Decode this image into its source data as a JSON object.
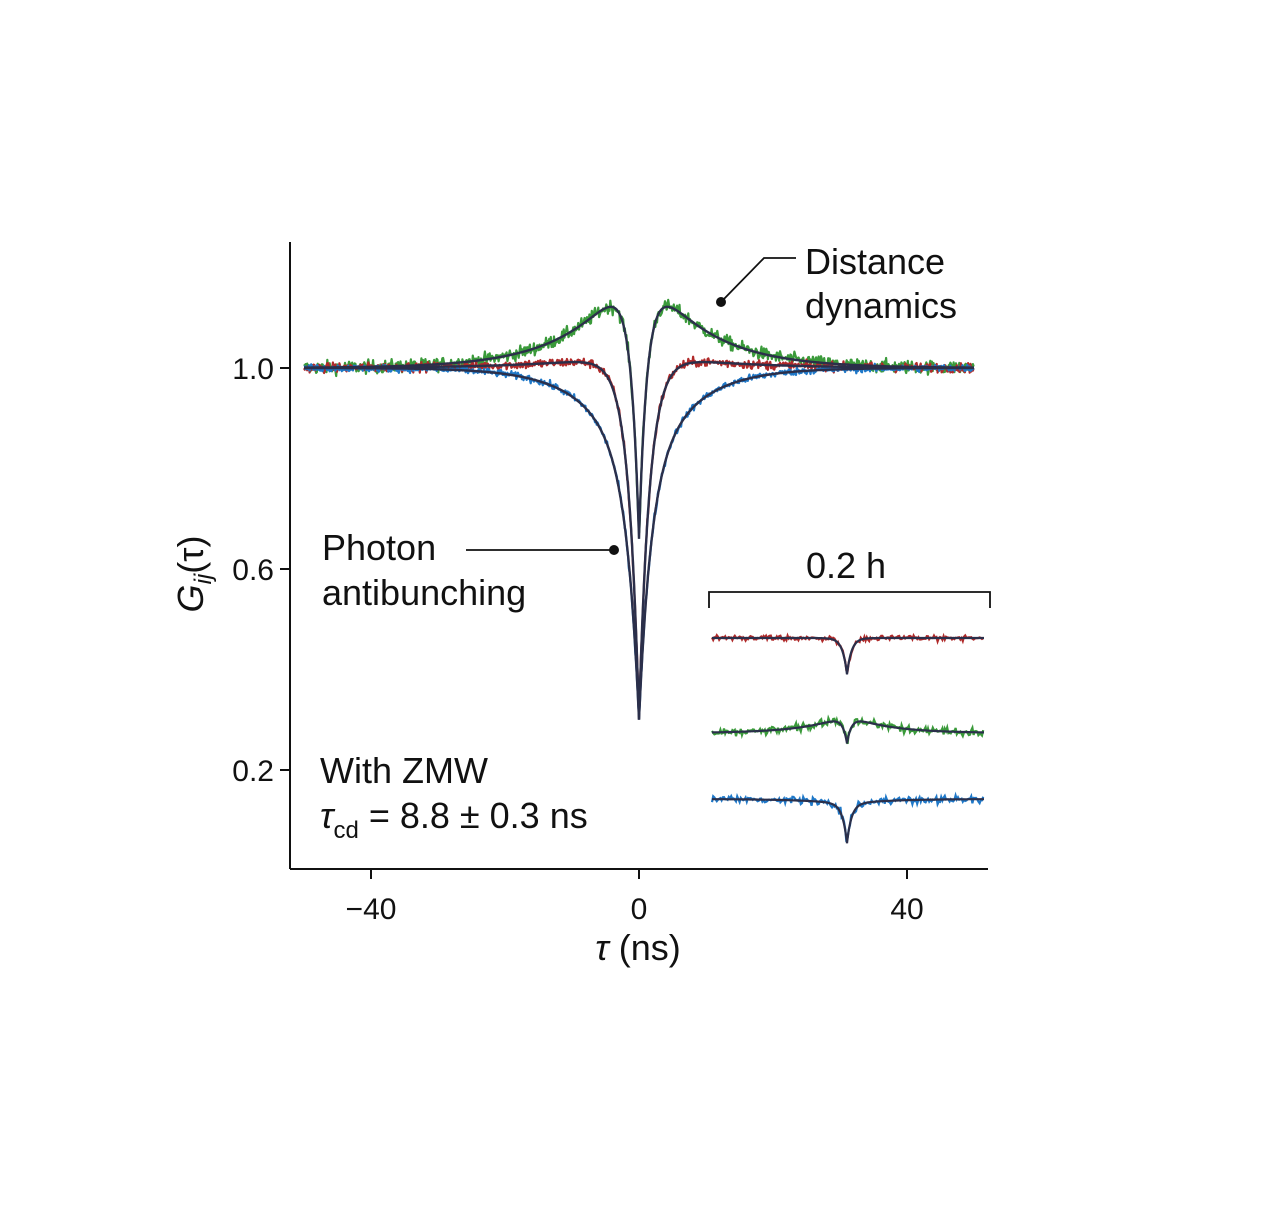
{
  "chart_data": {
    "type": "line",
    "title": "",
    "xlabel_sym": "τ",
    "xlabel_rest": " (ns)",
    "ylabel_main": "G",
    "ylabel_sub": "ij",
    "ylabel_arg": "(τ)",
    "xlim": [
      -50,
      52
    ],
    "ylim": [
      0.0,
      1.25
    ],
    "xticks": [
      -40,
      0,
      40
    ],
    "xtick_labels": [
      "−40",
      "0",
      "40"
    ],
    "yticks": [
      1.0,
      0.6,
      0.2
    ],
    "ytick_labels": [
      "1.0",
      "0.6",
      "0.2"
    ],
    "series": [
      {
        "name": "green",
        "color": "#3a9a3a",
        "baseline": 1.0,
        "dip_min": 0.66,
        "bunch_amp": 0.23,
        "bunch_decay_ns": 8.8,
        "antibunch_ns": 1.3,
        "noise": 0.013
      },
      {
        "name": "red",
        "color": "#b02a2a",
        "baseline": 1.0,
        "dip_min": 0.3,
        "bunch_amp": 0.03,
        "bunch_decay_ns": 12.0,
        "antibunch_ns": 1.6,
        "noise": 0.009
      },
      {
        "name": "blue",
        "color": "#1f78c8",
        "baseline": 1.0,
        "dip_min": 0.3,
        "bunch_amp": -0.26,
        "bunch_decay_ns": 6.5,
        "antibunch_ns": 1.6,
        "noise": 0.007
      }
    ],
    "fit_color": "#2b2f4a",
    "annotations": {
      "distance_line1": "Distance",
      "distance_line2": "dynamics",
      "photon_line1": "Photon",
      "photon_line2": "antibunching",
      "zmw_line1": "With ZMW",
      "tau_sym": "τ",
      "tau_sub": "cd",
      "tau_value": " = 8.8 ± 0.3 ns"
    },
    "inset": {
      "label": "0.2 h",
      "traces": [
        {
          "name": "red",
          "color": "#b02a2a",
          "dip_depth": 0.7,
          "bunch_amp": 0.0,
          "noise": 0.05
        },
        {
          "name": "green",
          "color": "#3a9a3a",
          "dip_depth": 0.55,
          "bunch_amp": 0.35,
          "noise": 0.08
        },
        {
          "name": "blue",
          "color": "#1f78c8",
          "dip_depth": 0.75,
          "bunch_amp": -0.1,
          "noise": 0.07
        }
      ]
    }
  }
}
